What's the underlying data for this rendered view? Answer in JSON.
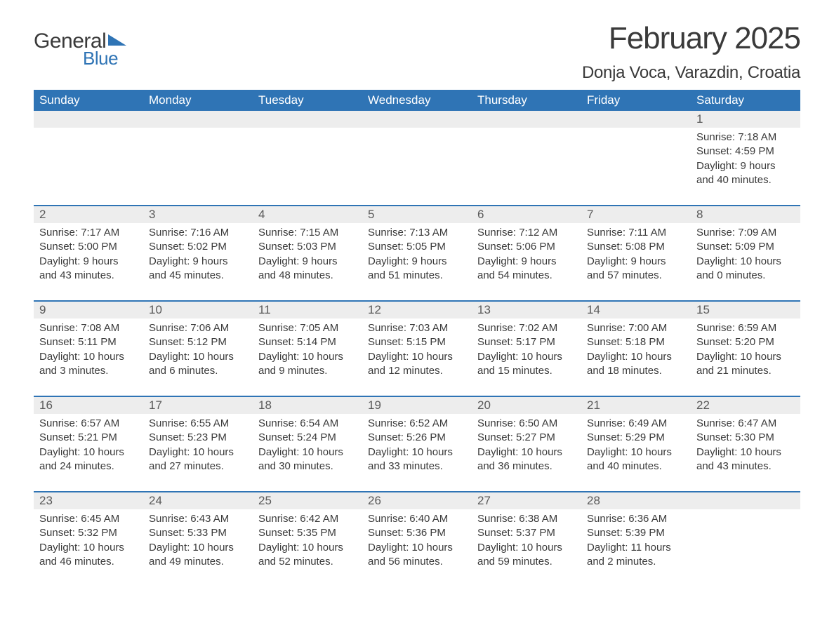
{
  "logo": {
    "text1": "General",
    "text2": "Blue"
  },
  "title": "February 2025",
  "location": "Donja Voca, Varazdin, Croatia",
  "colors": {
    "header_bg": "#2f74b5",
    "header_text": "#ffffff",
    "daynum_bg": "#ededed",
    "text": "#3a3a3a",
    "logo_blue": "#2f74b5"
  },
  "fonts": {
    "title_size_pt": 33,
    "location_size_pt": 18,
    "dow_size_pt": 13,
    "body_size_pt": 11
  },
  "days_of_week": [
    "Sunday",
    "Monday",
    "Tuesday",
    "Wednesday",
    "Thursday",
    "Friday",
    "Saturday"
  ],
  "labels": {
    "sunrise": "Sunrise: ",
    "sunset": "Sunset: ",
    "daylight": "Daylight: "
  },
  "weeks": [
    {
      "days": [
        {
          "n": "",
          "sunrise": "",
          "sunset": "",
          "daylight1": "",
          "daylight2": ""
        },
        {
          "n": "",
          "sunrise": "",
          "sunset": "",
          "daylight1": "",
          "daylight2": ""
        },
        {
          "n": "",
          "sunrise": "",
          "sunset": "",
          "daylight1": "",
          "daylight2": ""
        },
        {
          "n": "",
          "sunrise": "",
          "sunset": "",
          "daylight1": "",
          "daylight2": ""
        },
        {
          "n": "",
          "sunrise": "",
          "sunset": "",
          "daylight1": "",
          "daylight2": ""
        },
        {
          "n": "",
          "sunrise": "",
          "sunset": "",
          "daylight1": "",
          "daylight2": ""
        },
        {
          "n": "1",
          "sunrise": "Sunrise: 7:18 AM",
          "sunset": "Sunset: 4:59 PM",
          "daylight1": "Daylight: 9 hours",
          "daylight2": "and 40 minutes."
        }
      ]
    },
    {
      "days": [
        {
          "n": "2",
          "sunrise": "Sunrise: 7:17 AM",
          "sunset": "Sunset: 5:00 PM",
          "daylight1": "Daylight: 9 hours",
          "daylight2": "and 43 minutes."
        },
        {
          "n": "3",
          "sunrise": "Sunrise: 7:16 AM",
          "sunset": "Sunset: 5:02 PM",
          "daylight1": "Daylight: 9 hours",
          "daylight2": "and 45 minutes."
        },
        {
          "n": "4",
          "sunrise": "Sunrise: 7:15 AM",
          "sunset": "Sunset: 5:03 PM",
          "daylight1": "Daylight: 9 hours",
          "daylight2": "and 48 minutes."
        },
        {
          "n": "5",
          "sunrise": "Sunrise: 7:13 AM",
          "sunset": "Sunset: 5:05 PM",
          "daylight1": "Daylight: 9 hours",
          "daylight2": "and 51 minutes."
        },
        {
          "n": "6",
          "sunrise": "Sunrise: 7:12 AM",
          "sunset": "Sunset: 5:06 PM",
          "daylight1": "Daylight: 9 hours",
          "daylight2": "and 54 minutes."
        },
        {
          "n": "7",
          "sunrise": "Sunrise: 7:11 AM",
          "sunset": "Sunset: 5:08 PM",
          "daylight1": "Daylight: 9 hours",
          "daylight2": "and 57 minutes."
        },
        {
          "n": "8",
          "sunrise": "Sunrise: 7:09 AM",
          "sunset": "Sunset: 5:09 PM",
          "daylight1": "Daylight: 10 hours",
          "daylight2": "and 0 minutes."
        }
      ]
    },
    {
      "days": [
        {
          "n": "9",
          "sunrise": "Sunrise: 7:08 AM",
          "sunset": "Sunset: 5:11 PM",
          "daylight1": "Daylight: 10 hours",
          "daylight2": "and 3 minutes."
        },
        {
          "n": "10",
          "sunrise": "Sunrise: 7:06 AM",
          "sunset": "Sunset: 5:12 PM",
          "daylight1": "Daylight: 10 hours",
          "daylight2": "and 6 minutes."
        },
        {
          "n": "11",
          "sunrise": "Sunrise: 7:05 AM",
          "sunset": "Sunset: 5:14 PM",
          "daylight1": "Daylight: 10 hours",
          "daylight2": "and 9 minutes."
        },
        {
          "n": "12",
          "sunrise": "Sunrise: 7:03 AM",
          "sunset": "Sunset: 5:15 PM",
          "daylight1": "Daylight: 10 hours",
          "daylight2": "and 12 minutes."
        },
        {
          "n": "13",
          "sunrise": "Sunrise: 7:02 AM",
          "sunset": "Sunset: 5:17 PM",
          "daylight1": "Daylight: 10 hours",
          "daylight2": "and 15 minutes."
        },
        {
          "n": "14",
          "sunrise": "Sunrise: 7:00 AM",
          "sunset": "Sunset: 5:18 PM",
          "daylight1": "Daylight: 10 hours",
          "daylight2": "and 18 minutes."
        },
        {
          "n": "15",
          "sunrise": "Sunrise: 6:59 AM",
          "sunset": "Sunset: 5:20 PM",
          "daylight1": "Daylight: 10 hours",
          "daylight2": "and 21 minutes."
        }
      ]
    },
    {
      "days": [
        {
          "n": "16",
          "sunrise": "Sunrise: 6:57 AM",
          "sunset": "Sunset: 5:21 PM",
          "daylight1": "Daylight: 10 hours",
          "daylight2": "and 24 minutes."
        },
        {
          "n": "17",
          "sunrise": "Sunrise: 6:55 AM",
          "sunset": "Sunset: 5:23 PM",
          "daylight1": "Daylight: 10 hours",
          "daylight2": "and 27 minutes."
        },
        {
          "n": "18",
          "sunrise": "Sunrise: 6:54 AM",
          "sunset": "Sunset: 5:24 PM",
          "daylight1": "Daylight: 10 hours",
          "daylight2": "and 30 minutes."
        },
        {
          "n": "19",
          "sunrise": "Sunrise: 6:52 AM",
          "sunset": "Sunset: 5:26 PM",
          "daylight1": "Daylight: 10 hours",
          "daylight2": "and 33 minutes."
        },
        {
          "n": "20",
          "sunrise": "Sunrise: 6:50 AM",
          "sunset": "Sunset: 5:27 PM",
          "daylight1": "Daylight: 10 hours",
          "daylight2": "and 36 minutes."
        },
        {
          "n": "21",
          "sunrise": "Sunrise: 6:49 AM",
          "sunset": "Sunset: 5:29 PM",
          "daylight1": "Daylight: 10 hours",
          "daylight2": "and 40 minutes."
        },
        {
          "n": "22",
          "sunrise": "Sunrise: 6:47 AM",
          "sunset": "Sunset: 5:30 PM",
          "daylight1": "Daylight: 10 hours",
          "daylight2": "and 43 minutes."
        }
      ]
    },
    {
      "days": [
        {
          "n": "23",
          "sunrise": "Sunrise: 6:45 AM",
          "sunset": "Sunset: 5:32 PM",
          "daylight1": "Daylight: 10 hours",
          "daylight2": "and 46 minutes."
        },
        {
          "n": "24",
          "sunrise": "Sunrise: 6:43 AM",
          "sunset": "Sunset: 5:33 PM",
          "daylight1": "Daylight: 10 hours",
          "daylight2": "and 49 minutes."
        },
        {
          "n": "25",
          "sunrise": "Sunrise: 6:42 AM",
          "sunset": "Sunset: 5:35 PM",
          "daylight1": "Daylight: 10 hours",
          "daylight2": "and 52 minutes."
        },
        {
          "n": "26",
          "sunrise": "Sunrise: 6:40 AM",
          "sunset": "Sunset: 5:36 PM",
          "daylight1": "Daylight: 10 hours",
          "daylight2": "and 56 minutes."
        },
        {
          "n": "27",
          "sunrise": "Sunrise: 6:38 AM",
          "sunset": "Sunset: 5:37 PM",
          "daylight1": "Daylight: 10 hours",
          "daylight2": "and 59 minutes."
        },
        {
          "n": "28",
          "sunrise": "Sunrise: 6:36 AM",
          "sunset": "Sunset: 5:39 PM",
          "daylight1": "Daylight: 11 hours",
          "daylight2": "and 2 minutes."
        },
        {
          "n": "",
          "sunrise": "",
          "sunset": "",
          "daylight1": "",
          "daylight2": ""
        }
      ]
    }
  ]
}
